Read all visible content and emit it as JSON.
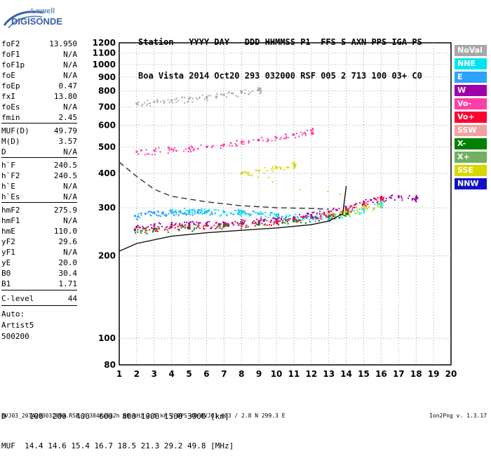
{
  "logo": {
    "line1": "Lowell",
    "line2": "DIGISONDE"
  },
  "header": {
    "row1": [
      "Station",
      "YYYY",
      "DAY",
      "DDD",
      "HHMMSS",
      "P1",
      "FFS",
      "S",
      "AXN",
      "PPS",
      "IGA",
      "PS"
    ],
    "row2": [
      "Boa Vista",
      "2014",
      "Oct20",
      "293",
      "032000",
      "RSF",
      "005",
      "2",
      "713",
      "100",
      "03+",
      "C0"
    ]
  },
  "params": [
    {
      "name": "foF2",
      "value": "13.950"
    },
    {
      "name": "foF1",
      "value": "N/A"
    },
    {
      "name": "foF1p",
      "value": "N/A"
    },
    {
      "name": "foE",
      "value": "N/A"
    },
    {
      "name": "foEp",
      "value": "0.47"
    },
    {
      "name": "fxI",
      "value": "13.80"
    },
    {
      "name": "foEs",
      "value": "N/A"
    },
    {
      "name": "fmin",
      "value": "2.45"
    },
    {
      "name": "MUF(D)",
      "value": "49.79"
    },
    {
      "name": "M(D)",
      "value": "3.57"
    },
    {
      "name": "D",
      "value": "N/A"
    },
    {
      "name": "h`F",
      "value": "240.5"
    },
    {
      "name": "h`F2",
      "value": "240.5"
    },
    {
      "name": "h`E",
      "value": "N/A"
    },
    {
      "name": "h`Es",
      "value": "N/A"
    },
    {
      "name": "hmF2",
      "value": "275.9"
    },
    {
      "name": "hmF1",
      "value": "N/A"
    },
    {
      "name": "hmE",
      "value": "110.0"
    },
    {
      "name": "yF2",
      "value": "29.6"
    },
    {
      "name": "yF1",
      "value": "N/A"
    },
    {
      "name": "yE",
      "value": "20.0"
    },
    {
      "name": "B0",
      "value": "30.4"
    },
    {
      "name": "B1",
      "value": "1.71"
    },
    {
      "name": "C-level",
      "value": "44"
    },
    {
      "name": "Auto:",
      "value": ""
    },
    {
      "name": "Artist5",
      "value": ""
    },
    {
      "name": "500200",
      "value": ""
    }
  ],
  "legend": [
    {
      "label": "NoVal",
      "color": "#a8a8a8"
    },
    {
      "label": "NNE",
      "color": "#00e5f0"
    },
    {
      "label": "E",
      "color": "#2aa4ff"
    },
    {
      "label": "W",
      "color": "#a000a8"
    },
    {
      "label": "Vo-",
      "color": "#ff3fa8"
    },
    {
      "label": "Vo+",
      "color": "#ff0030"
    },
    {
      "label": "SSW",
      "color": "#f2a0a0"
    },
    {
      "label": "X-",
      "color": "#008000"
    },
    {
      "label": "X+",
      "color": "#70b060"
    },
    {
      "label": "SSE",
      "color": "#d8d800"
    },
    {
      "label": "NNW",
      "color": "#1010c8"
    }
  ],
  "muf_table": {
    "d_label": "D",
    "muf_label": "MUF",
    "distances": [
      "100",
      "200",
      "400",
      "600",
      "800",
      "1000",
      "1500",
      "3000",
      "[km]"
    ],
    "mufs": [
      "14.4",
      "14.6",
      "15.4",
      "16.7",
      "18.5",
      "21.3",
      "29.2",
      "49.8",
      "[MHz]"
    ]
  },
  "footer": "BVJ03_2014293032000.RSF / 384fx512h 50 kHz 2.5 km / DPS-4D BVJ03 003 / 2.8 N 299.3 E",
  "version": "Ion2Png v. 1.3.17",
  "chart_data": {
    "type": "scatter",
    "title": "",
    "xlabel": "",
    "ylabel": "",
    "xlim": [
      1,
      20
    ],
    "ylim": [
      80,
      1200
    ],
    "x_ticks": [
      1,
      2,
      3,
      4,
      5,
      6,
      7,
      8,
      9,
      10,
      11,
      12,
      13,
      14,
      15,
      16,
      17,
      18,
      19,
      20
    ],
    "y_ticks": [
      80,
      100,
      200,
      300,
      400,
      500,
      600,
      700,
      800,
      900,
      1000,
      1100,
      1200
    ],
    "y_scale": "log",
    "grid": true,
    "series": [
      {
        "name": "E",
        "x": [
          1.9,
          2.5,
          3.0,
          3.5,
          4.0,
          4.5,
          5.0,
          5.5,
          6.0,
          7.0,
          8.0,
          9.0,
          10.0,
          11.0,
          12.0,
          13.0
        ],
        "y": [
          280,
          285,
          287,
          288,
          288,
          289,
          290,
          289,
          289,
          289,
          288,
          285,
          280,
          277,
          275,
          276
        ]
      },
      {
        "name": "NNE",
        "x": [
          4.0,
          5.0,
          6.0,
          7.0,
          8.0,
          9.0,
          10.0,
          11.0,
          12.0,
          13.0,
          14.0,
          15.0,
          16.0
        ],
        "y": [
          292,
          292,
          291,
          290,
          288,
          285,
          280,
          278,
          278,
          280,
          285,
          295,
          310
        ]
      },
      {
        "name": "W",
        "x": [
          2.0,
          3.0,
          4.0,
          5.0,
          6.0,
          7.0,
          8.0,
          9.0,
          10.0,
          11.0,
          12.0,
          13.0,
          14.0,
          15.0,
          16.0,
          17.0,
          18.0
        ],
        "y": [
          255,
          258,
          260,
          262,
          263,
          264,
          266,
          268,
          272,
          276,
          282,
          290,
          300,
          315,
          325,
          330,
          325
        ]
      },
      {
        "name": "Vo+",
        "x": [
          1.9,
          3.0,
          4.0,
          5.0,
          6.0,
          7.0,
          8.0,
          9.0,
          10.0,
          11.0,
          12.0,
          13.0,
          14.0,
          15.0,
          16.0
        ],
        "y": [
          250,
          252,
          255,
          257,
          258,
          260,
          262,
          265,
          268,
          272,
          278,
          285,
          295,
          310,
          325
        ]
      },
      {
        "name": "X-",
        "x": [
          1.9,
          3.0,
          5.0,
          7.0,
          9.0,
          11.0,
          13.0,
          14.0
        ],
        "y": [
          248,
          250,
          254,
          258,
          262,
          268,
          278,
          288
        ]
      },
      {
        "name": "SSE",
        "x": [
          13.0,
          14.0,
          15.0,
          16.0,
          8.0,
          9.0,
          10.0,
          11.0
        ],
        "y": [
          285,
          290,
          300,
          305,
          400,
          410,
          420,
          430
        ]
      },
      {
        "name": "Vo-",
        "x": [
          2.0,
          3.0,
          4.0,
          5.0,
          6.0,
          7.0,
          8.0,
          9.0,
          10.0,
          11.0,
          12.0
        ],
        "y": [
          480,
          485,
          490,
          495,
          500,
          510,
          520,
          530,
          540,
          555,
          575
        ]
      },
      {
        "name": "NoVal",
        "x": [
          2.0,
          3.0,
          4.0,
          5.0,
          6.0,
          7.0,
          8.0,
          9.0
        ],
        "y": [
          720,
          730,
          740,
          750,
          760,
          775,
          790,
          805
        ]
      }
    ],
    "curves": [
      {
        "style": "solid",
        "x": [
          1,
          2,
          4,
          6,
          8,
          10,
          12,
          13,
          13.8,
          14.0
        ],
        "y": [
          208,
          222,
          236,
          243,
          248,
          253,
          260,
          268,
          285,
          360
        ]
      },
      {
        "style": "dashed",
        "x": [
          1,
          2,
          3,
          4,
          6,
          8,
          10,
          12,
          13
        ],
        "y": [
          440,
          390,
          350,
          330,
          315,
          305,
          300,
          298,
          296
        ]
      }
    ]
  }
}
